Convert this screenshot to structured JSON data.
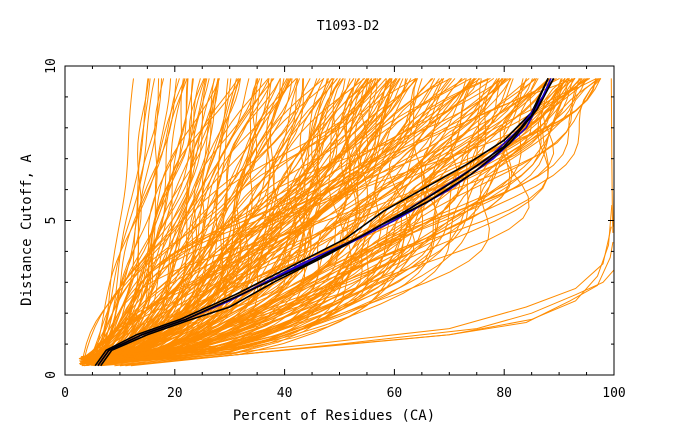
{
  "chart_data": {
    "type": "line",
    "title": "T1093-D2",
    "xlabel": "Percent of Residues (CA)",
    "ylabel": "Distance Cutoff, A",
    "xlim": [
      0,
      100
    ],
    "ylim": [
      0,
      10
    ],
    "x_ticks": [
      "0",
      "20",
      "40",
      "60",
      "80",
      "100"
    ],
    "y_ticks": [
      "0",
      "5",
      "10"
    ],
    "grid": false,
    "legend": "none",
    "colors": {
      "other_models": "#ff8c00",
      "highlight_blue": "#1a00c8",
      "highlight_black": "#000000",
      "axes": "#000000"
    },
    "series": [
      {
        "group": "highlight",
        "color": "#1a00c8",
        "points": [
          [
            6,
            0.3
          ],
          [
            8,
            0.8
          ],
          [
            14,
            1.3
          ],
          [
            22,
            1.8
          ],
          [
            30,
            2.4
          ],
          [
            40,
            3.3
          ],
          [
            50,
            4.1
          ],
          [
            60,
            5.0
          ],
          [
            70,
            6.0
          ],
          [
            78,
            7.0
          ],
          [
            84,
            8.0
          ],
          [
            87,
            9.0
          ],
          [
            89,
            9.6
          ]
        ]
      },
      {
        "group": "highlight",
        "color": "#000000",
        "points": [
          [
            5.5,
            0.3
          ],
          [
            7.5,
            0.8
          ],
          [
            13,
            1.3
          ],
          [
            21,
            1.8
          ],
          [
            31,
            2.6
          ],
          [
            41,
            3.5
          ],
          [
            51,
            4.4
          ],
          [
            58,
            5.3
          ],
          [
            65,
            6.0
          ],
          [
            73,
            6.8
          ],
          [
            80,
            7.6
          ],
          [
            85,
            8.5
          ],
          [
            88,
            9.6
          ]
        ]
      },
      {
        "group": "highlight",
        "color": "#000000",
        "points": [
          [
            6.5,
            0.3
          ],
          [
            8.5,
            0.8
          ],
          [
            15,
            1.3
          ],
          [
            23,
            1.8
          ],
          [
            30,
            2.2
          ],
          [
            38,
            3.0
          ],
          [
            48,
            3.9
          ],
          [
            57,
            4.8
          ],
          [
            66,
            5.6
          ],
          [
            74,
            6.5
          ],
          [
            81,
            7.5
          ],
          [
            86,
            8.6
          ],
          [
            89,
            9.6
          ]
        ]
      },
      {
        "group": "highlight",
        "color": "#1a00c8",
        "points": [
          [
            6,
            0.3
          ],
          [
            8,
            0.8
          ],
          [
            14,
            1.3
          ],
          [
            22,
            1.8
          ],
          [
            32,
            2.6
          ],
          [
            43,
            3.6
          ],
          [
            53,
            4.4
          ],
          [
            62,
            5.3
          ],
          [
            70,
            6.2
          ],
          [
            77,
            7.0
          ],
          [
            83,
            8.0
          ],
          [
            87,
            9.0
          ],
          [
            88.5,
            9.6
          ]
        ]
      },
      {
        "group": "highlight",
        "color": "#000000",
        "points": [
          [
            6,
            0.3
          ],
          [
            8,
            0.8
          ],
          [
            14,
            1.3
          ],
          [
            22,
            1.8
          ],
          [
            32,
            2.6
          ],
          [
            43,
            3.5
          ],
          [
            55,
            4.6
          ],
          [
            63,
            5.4
          ],
          [
            72,
            6.4
          ],
          [
            80,
            7.4
          ],
          [
            85,
            8.4
          ],
          [
            88,
            9.6
          ]
        ]
      }
    ]
  }
}
